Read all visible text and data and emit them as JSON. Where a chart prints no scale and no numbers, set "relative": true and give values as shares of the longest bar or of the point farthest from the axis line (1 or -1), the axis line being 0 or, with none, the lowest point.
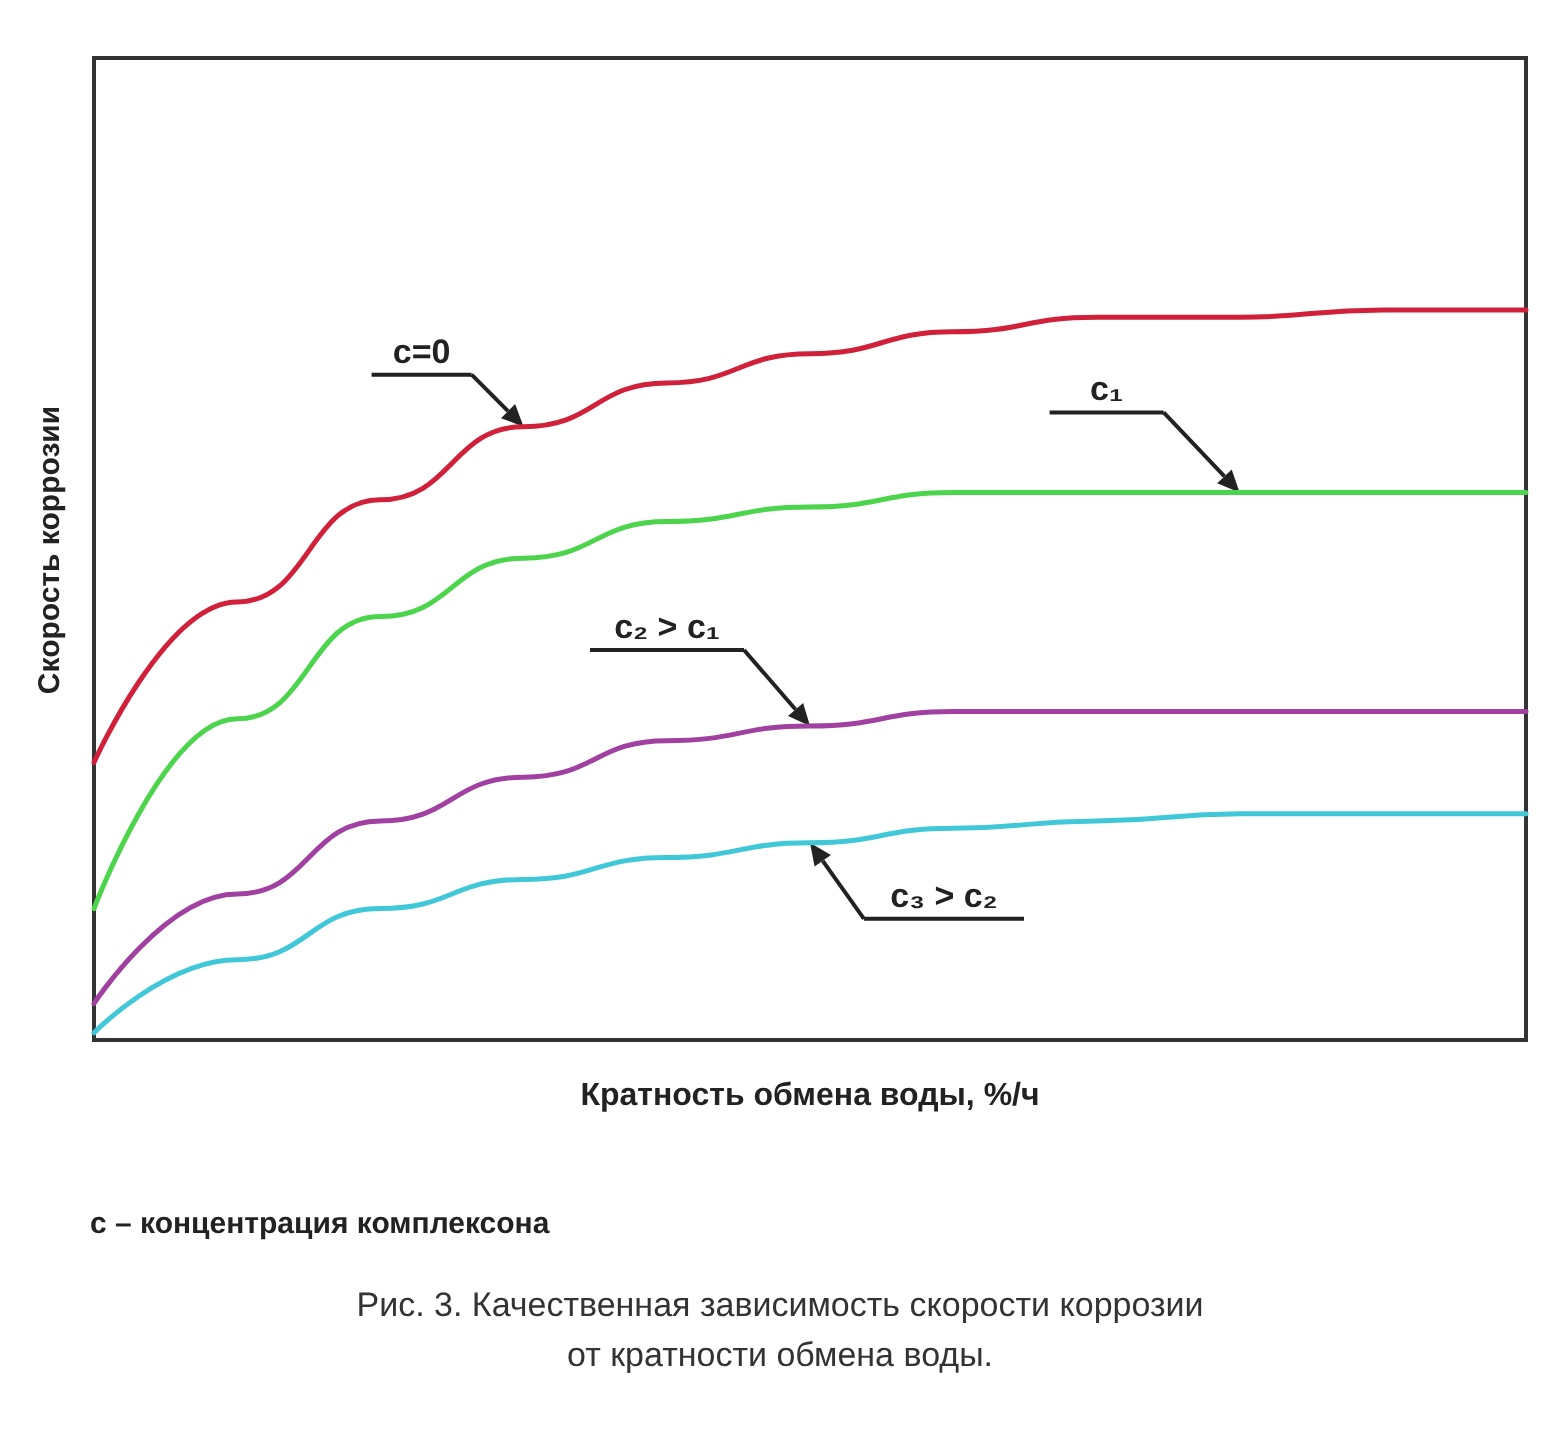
{
  "chart_data": {
    "type": "line",
    "relative": true,
    "xlabel": "Кратность обмена воды, %/ч",
    "ylabel": "Скорость коррозии",
    "categories": [
      null,
      null,
      null,
      null,
      null,
      null,
      null,
      null,
      null,
      null,
      null
    ],
    "series": [
      {
        "name": "c=0",
        "color": "#d0203a",
        "values": [
          0.38,
          0.6,
          0.74,
          0.84,
          0.9,
          0.94,
          0.97,
          0.99,
          0.99,
          1,
          1
        ]
      },
      {
        "name": "c₁",
        "color": "#4cd44c",
        "values": [
          0.18,
          0.44,
          0.58,
          0.66,
          0.71,
          0.73,
          0.75,
          0.75,
          0.75,
          0.75,
          0.75
        ]
      },
      {
        "name": "c₂ > c₁",
        "color": "#a040a0",
        "values": [
          0.05,
          0.2,
          0.3,
          0.36,
          0.41,
          0.43,
          0.45,
          0.45,
          0.45,
          0.45,
          0.45
        ]
      },
      {
        "name": "c₃ > c₂",
        "color": "#40c8d8",
        "values": [
          0.01,
          0.11,
          0.18,
          0.22,
          0.25,
          0.27,
          0.29,
          0.3,
          0.31,
          0.31,
          0.31
        ]
      }
    ],
    "annotations": [
      "c – концентрация комплексона",
      "Рис. 3. Качественная зависимость скорости коррозии\nот кратности обмена воды."
    ],
    "legend": false,
    "grid": false,
    "marker": "none",
    "line_style": "solid"
  }
}
